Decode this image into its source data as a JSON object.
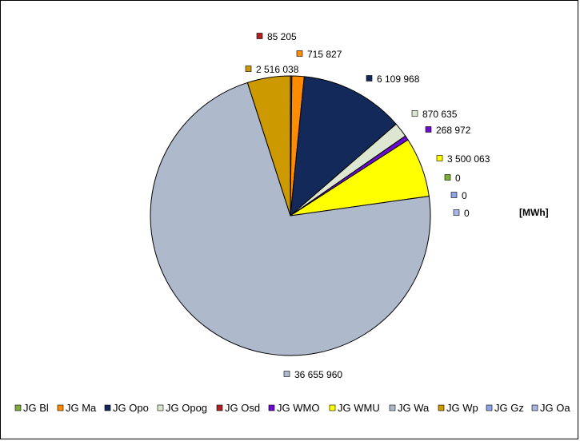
{
  "chart_data": {
    "type": "pie",
    "unit": "[MWh]",
    "legend_position": "bottom",
    "series": [
      {
        "name": "JG Bl",
        "value": 0,
        "label": "0",
        "color": "#7fae36"
      },
      {
        "name": "JG Ma",
        "value": 715827,
        "label": "715 827",
        "color": "#ff8c00"
      },
      {
        "name": "JG Opo",
        "value": 6109968,
        "label": "6 109 968",
        "color": "#12295a"
      },
      {
        "name": "JG Opog",
        "value": 870635,
        "label": "870 635",
        "color": "#dce6d0"
      },
      {
        "name": "JG Osd",
        "value": 85205,
        "label": "85 205",
        "color": "#b22222"
      },
      {
        "name": "JG WMO",
        "value": 268972,
        "label": "268 972",
        "color": "#6a0dcc"
      },
      {
        "name": "JG WMU",
        "value": 3500063,
        "label": "3 500 063",
        "color": "#ffff00"
      },
      {
        "name": "JG Wa",
        "value": 36655960,
        "label": "36 655 960",
        "color": "#aeb9cc"
      },
      {
        "name": "JG Wp",
        "value": 2516038,
        "label": "2 516 038",
        "color": "#cc9900"
      },
      {
        "name": "JG Gz",
        "value": 0,
        "label": "0",
        "color": "#8fa3e6"
      },
      {
        "name": "JG Oa",
        "value": 0,
        "label": "0",
        "color": "#a9b4e8"
      }
    ]
  }
}
